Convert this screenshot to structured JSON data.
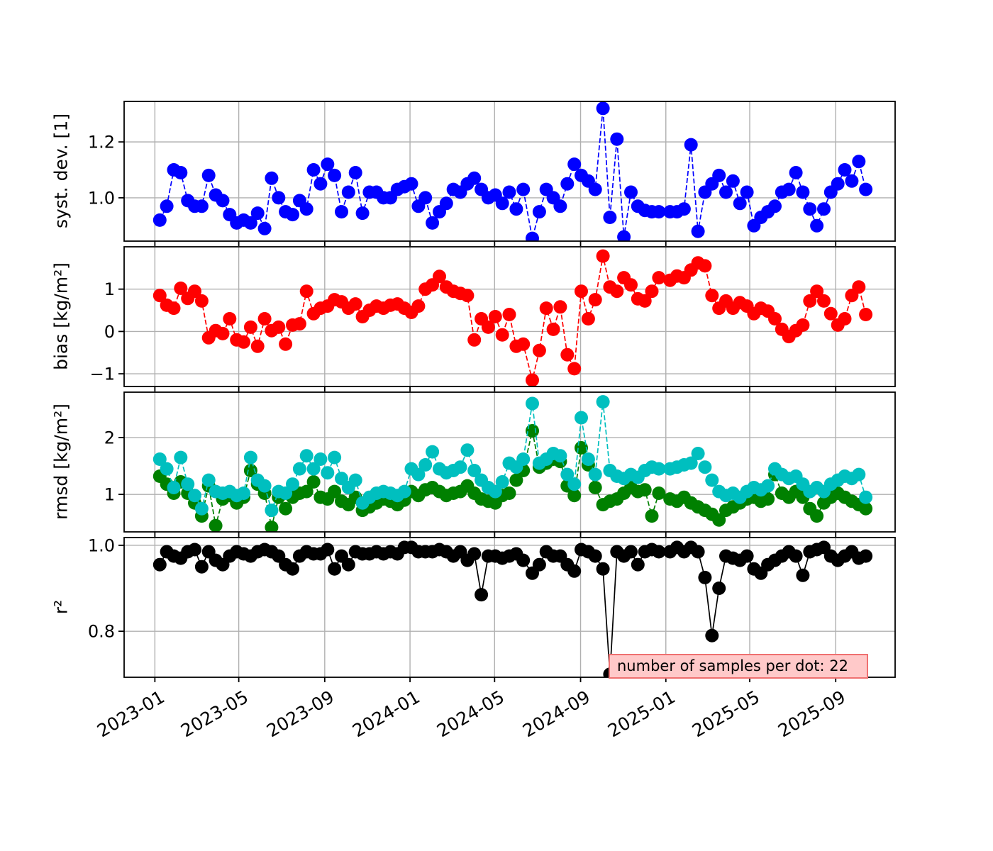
{
  "chart_data": {
    "type": "line",
    "grid": true,
    "marker": "circle",
    "marker_diameter_px": 19,
    "annotation": "number of samples per dot: 22",
    "x_domain": [
      "2022-11-18",
      "2025-11-25"
    ],
    "x_ticks": {
      "dates": [
        "2023-01-01",
        "2023-05-01",
        "2023-09-01",
        "2024-01-01",
        "2024-05-01",
        "2024-09-01",
        "2025-01-01",
        "2025-05-01",
        "2025-09-01"
      ],
      "labels": [
        "2023-01",
        "2023-05",
        "2023-09",
        "2024-01",
        "2024-05",
        "2024-09",
        "2025-01",
        "2025-05",
        "2025-09"
      ],
      "rotation_deg": 30
    },
    "x": [
      "2023-01-08",
      "2023-01-18",
      "2023-01-28",
      "2023-02-07",
      "2023-02-17",
      "2023-02-27",
      "2023-03-09",
      "2023-03-19",
      "2023-03-29",
      "2023-04-08",
      "2023-04-18",
      "2023-04-28",
      "2023-05-08",
      "2023-05-18",
      "2023-05-28",
      "2023-06-07",
      "2023-06-17",
      "2023-06-27",
      "2023-07-07",
      "2023-07-17",
      "2023-07-27",
      "2023-08-06",
      "2023-08-16",
      "2023-08-26",
      "2023-09-05",
      "2023-09-15",
      "2023-09-25",
      "2023-10-05",
      "2023-10-15",
      "2023-10-25",
      "2023-11-04",
      "2023-11-14",
      "2023-11-24",
      "2023-12-04",
      "2023-12-14",
      "2023-12-24",
      "2024-01-03",
      "2024-01-13",
      "2024-01-23",
      "2024-02-02",
      "2024-02-12",
      "2024-02-22",
      "2024-03-03",
      "2024-03-13",
      "2024-03-23",
      "2024-04-02",
      "2024-04-12",
      "2024-04-22",
      "2024-05-02",
      "2024-05-12",
      "2024-05-22",
      "2024-06-01",
      "2024-06-11",
      "2024-06-24",
      "2024-07-04",
      "2024-07-14",
      "2024-07-24",
      "2024-08-03",
      "2024-08-13",
      "2024-08-23",
      "2024-09-02",
      "2024-09-12",
      "2024-09-22",
      "2024-10-03",
      "2024-10-13",
      "2024-10-23",
      "2024-11-02",
      "2024-11-12",
      "2024-11-22",
      "2024-12-02",
      "2024-12-12",
      "2024-12-22",
      "2025-01-07",
      "2025-01-17",
      "2025-01-27",
      "2025-02-06",
      "2025-02-16",
      "2025-02-26",
      "2025-03-08",
      "2025-03-18",
      "2025-03-28",
      "2025-04-07",
      "2025-04-17",
      "2025-04-27",
      "2025-05-07",
      "2025-05-17",
      "2025-05-27",
      "2025-06-06",
      "2025-06-16",
      "2025-06-26",
      "2025-07-06",
      "2025-07-16",
      "2025-07-26",
      "2025-08-05",
      "2025-08-15",
      "2025-08-25",
      "2025-09-04",
      "2025-09-14",
      "2025-09-24",
      "2025-10-04",
      "2025-10-14"
    ],
    "panels": [
      {
        "name": "syst-dev",
        "ylabel": "syst. dev. [1]",
        "ylim": [
          0.845,
          1.345
        ],
        "ytick_values": [
          1.0,
          1.2
        ],
        "ytick_labels": [
          "1.0",
          "1.2"
        ],
        "series": [
          {
            "name": "syst-dev",
            "color": "#0000ff",
            "linestyle": "dashed",
            "values": [
              0.92,
              0.97,
              1.1,
              1.09,
              0.99,
              0.97,
              0.97,
              1.08,
              1.01,
              0.99,
              0.94,
              0.91,
              0.92,
              0.91,
              0.945,
              0.89,
              1.07,
              1.0,
              0.95,
              0.94,
              0.99,
              0.96,
              1.1,
              1.05,
              1.12,
              1.08,
              0.95,
              1.02,
              1.09,
              0.945,
              1.02,
              1.02,
              1.0,
              1.0,
              1.03,
              1.04,
              1.05,
              0.97,
              1.0,
              0.91,
              0.95,
              0.98,
              1.03,
              1.02,
              1.05,
              1.07,
              1.03,
              1.0,
              1.01,
              0.98,
              1.02,
              0.96,
              1.03,
              0.855,
              0.95,
              1.03,
              1.0,
              0.97,
              1.05,
              1.12,
              1.08,
              1.06,
              1.03,
              1.32,
              0.93,
              1.21,
              0.86,
              1.02,
              0.97,
              0.955,
              0.95,
              0.95,
              0.95,
              0.95,
              0.96,
              1.19,
              0.88,
              1.02,
              1.05,
              1.08,
              1.02,
              1.06,
              0.98,
              1.02,
              0.9,
              0.93,
              0.95,
              0.97,
              1.02,
              1.03,
              1.09,
              1.02,
              0.96,
              0.9,
              0.96,
              1.02,
              1.05,
              1.1,
              1.06,
              1.13,
              1.03
            ]
          }
        ]
      },
      {
        "name": "bias",
        "ylabel": "bias [kg/m²]",
        "ylim": [
          -1.3,
          2.0
        ],
        "ytick_values": [
          -1,
          0,
          1
        ],
        "ytick_labels": [
          "−1",
          "0",
          "1"
        ],
        "series": [
          {
            "name": "bias",
            "color": "#ff0000",
            "linestyle": "dashed",
            "values": [
              0.85,
              0.62,
              0.55,
              1.02,
              0.78,
              0.95,
              0.72,
              -0.15,
              0.02,
              -0.05,
              0.3,
              -0.2,
              -0.25,
              0.1,
              -0.35,
              0.3,
              0.02,
              0.1,
              -0.3,
              0.15,
              0.18,
              0.95,
              0.42,
              0.55,
              0.6,
              0.75,
              0.7,
              0.55,
              0.65,
              0.35,
              0.5,
              0.6,
              0.55,
              0.62,
              0.65,
              0.55,
              0.45,
              0.6,
              1.0,
              1.1,
              1.3,
              1.05,
              0.95,
              0.9,
              0.85,
              -0.2,
              0.3,
              0.1,
              0.35,
              -0.08,
              0.4,
              -0.35,
              -0.3,
              -1.15,
              -0.45,
              0.55,
              0.05,
              0.58,
              -0.55,
              -0.88,
              0.95,
              0.3,
              0.75,
              1.78,
              1.05,
              0.95,
              1.27,
              1.1,
              0.77,
              0.72,
              0.95,
              1.27,
              1.21,
              1.31,
              1.27,
              1.45,
              1.62,
              1.55,
              0.85,
              0.55,
              0.72,
              0.55,
              0.68,
              0.6,
              0.42,
              0.55,
              0.48,
              0.3,
              0.05,
              -0.12,
              0.02,
              0.15,
              0.72,
              0.95,
              0.72,
              0.42,
              0.15,
              0.3,
              0.85,
              1.05,
              0.4
            ]
          }
        ]
      },
      {
        "name": "rmsd",
        "ylabel": "rmsd [kg/m²]",
        "ylim": [
          0.34,
          2.8
        ],
        "ytick_values": [
          1,
          2
        ],
        "ytick_labels": [
          "1",
          "2"
        ],
        "series": [
          {
            "name": "rmsd-green",
            "color": "#008000",
            "linestyle": "dashed",
            "values": [
              1.32,
              1.18,
              1.02,
              1.22,
              1.02,
              0.85,
              0.62,
              1.15,
              0.45,
              0.92,
              0.98,
              0.85,
              0.95,
              1.42,
              1.18,
              1.02,
              0.42,
              0.95,
              0.75,
              0.95,
              1.02,
              1.05,
              1.22,
              0.95,
              0.92,
              1.05,
              0.88,
              0.82,
              0.95,
              0.72,
              0.78,
              0.85,
              0.92,
              0.88,
              0.82,
              0.9,
              1.05,
              0.98,
              1.08,
              1.12,
              1.05,
              0.98,
              1.02,
              1.05,
              1.15,
              1.02,
              0.92,
              0.88,
              0.85,
              0.98,
              1.02,
              1.25,
              1.42,
              2.12,
              1.48,
              1.55,
              1.62,
              1.58,
              1.15,
              0.98,
              1.82,
              1.52,
              1.12,
              0.82,
              0.88,
              0.92,
              1.02,
              1.12,
              1.05,
              1.08,
              0.62,
              1.02,
              0.92,
              0.88,
              0.95,
              0.85,
              0.78,
              0.72,
              0.65,
              0.55,
              0.72,
              0.78,
              0.85,
              0.92,
              0.95,
              0.88,
              0.92,
              1.35,
              1.02,
              0.95,
              1.05,
              0.95,
              0.75,
              0.62,
              0.85,
              0.95,
              1.02,
              0.95,
              0.88,
              0.82,
              0.75
            ]
          },
          {
            "name": "rmsd-cyan",
            "color": "#00bfbf",
            "linestyle": "dashed",
            "values": [
              1.62,
              1.45,
              1.12,
              1.65,
              1.18,
              0.98,
              0.75,
              1.25,
              1.05,
              1.02,
              1.05,
              0.98,
              1.02,
              1.65,
              1.25,
              1.15,
              0.72,
              1.05,
              1.02,
              1.18,
              1.45,
              1.68,
              1.45,
              1.62,
              1.38,
              1.65,
              1.28,
              1.12,
              1.25,
              0.85,
              0.95,
              1.02,
              1.05,
              1.02,
              0.98,
              1.05,
              1.45,
              1.35,
              1.52,
              1.75,
              1.45,
              1.38,
              1.42,
              1.48,
              1.78,
              1.42,
              1.25,
              1.12,
              1.05,
              1.22,
              1.55,
              1.48,
              1.62,
              2.6,
              1.55,
              1.62,
              1.72,
              1.68,
              1.35,
              1.18,
              2.35,
              1.62,
              1.35,
              2.63,
              1.42,
              1.32,
              1.28,
              1.35,
              1.3,
              1.42,
              1.48,
              1.45,
              1.45,
              1.48,
              1.52,
              1.55,
              1.72,
              1.48,
              1.25,
              1.05,
              0.98,
              1.02,
              0.95,
              1.05,
              1.12,
              1.08,
              1.15,
              1.45,
              1.35,
              1.28,
              1.32,
              1.18,
              1.05,
              1.12,
              1.05,
              1.18,
              1.25,
              1.32,
              1.28,
              1.35,
              0.95
            ]
          }
        ]
      },
      {
        "name": "r2",
        "ylabel": "r²",
        "ylim": [
          0.693,
          1.018
        ],
        "ytick_values": [
          0.8,
          1.0
        ],
        "ytick_labels": [
          "0.8",
          "1.0"
        ],
        "series": [
          {
            "name": "r-squared",
            "color": "#000000",
            "linestyle": "solid",
            "values": [
              0.955,
              0.985,
              0.975,
              0.97,
              0.985,
              0.99,
              0.95,
              0.985,
              0.965,
              0.955,
              0.975,
              0.985,
              0.98,
              0.975,
              0.985,
              0.99,
              0.985,
              0.975,
              0.955,
              0.945,
              0.975,
              0.985,
              0.98,
              0.98,
              0.99,
              0.945,
              0.975,
              0.955,
              0.985,
              0.98,
              0.98,
              0.985,
              0.98,
              0.985,
              0.98,
              0.995,
              0.995,
              0.985,
              0.985,
              0.985,
              0.99,
              0.985,
              0.975,
              0.985,
              0.965,
              0.98,
              0.885,
              0.975,
              0.975,
              0.97,
              0.975,
              0.98,
              0.965,
              0.935,
              0.955,
              0.985,
              0.975,
              0.975,
              0.955,
              0.94,
              0.99,
              0.985,
              0.975,
              0.945,
              0.7,
              0.985,
              0.975,
              0.985,
              0.955,
              0.985,
              0.99,
              0.985,
              0.985,
              0.995,
              0.985,
              0.995,
              0.985,
              0.925,
              0.79,
              0.9,
              0.975,
              0.97,
              0.965,
              0.975,
              0.945,
              0.935,
              0.955,
              0.965,
              0.975,
              0.985,
              0.975,
              0.93,
              0.985,
              0.99,
              0.995,
              0.975,
              0.965,
              0.975,
              0.985,
              0.97,
              0.975
            ]
          }
        ]
      }
    ]
  }
}
